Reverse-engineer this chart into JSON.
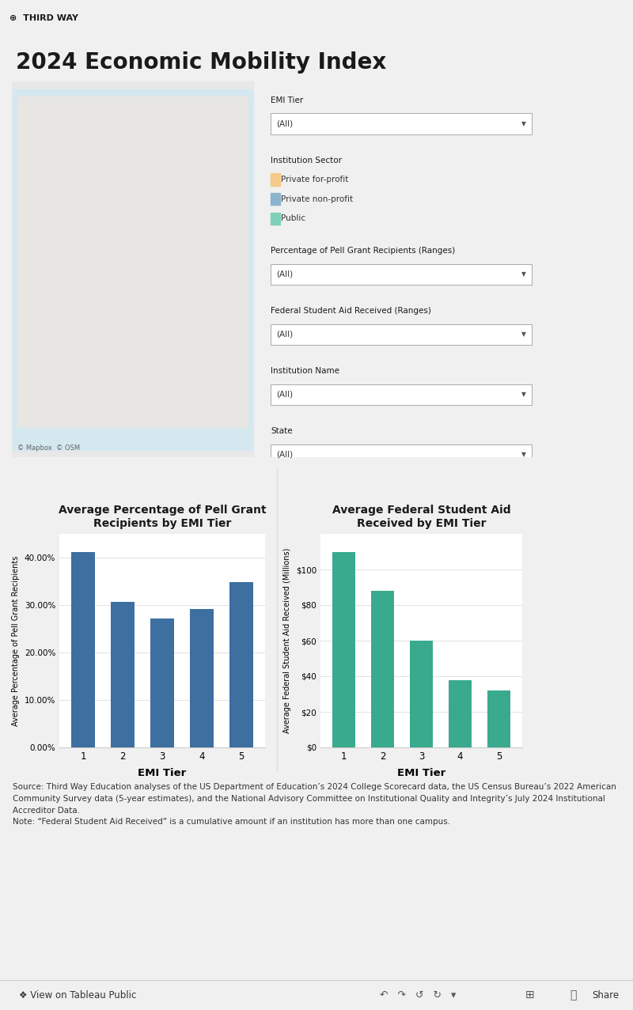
{
  "title": "2024 Economic Mobility Index",
  "logo_text": "THIRD WAY",
  "bg_color": "#f0f0f0",
  "panel_bg": "#ffffff",
  "orange_bar_color": "#f5a623",
  "header_bg": "#ffffff",
  "legend_items": [
    "Private for-profit",
    "Private non-profit",
    "Public"
  ],
  "legend_colors": [
    "#f5c98a",
    "#8ab4cc",
    "#7ecfb8"
  ],
  "chart1_title": "Average Percentage of Pell Grant\nRecipients by EMI Tier",
  "chart1_xlabel": "EMI Tier",
  "chart1_ylabel": "Average Percentage of Pell Grant Recipients",
  "chart1_values": [
    0.4115,
    0.306,
    0.272,
    0.291,
    0.349
  ],
  "chart1_categories": [
    1,
    2,
    3,
    4,
    5
  ],
  "chart1_color": "#3d6fa0",
  "chart1_yticks": [
    0.0,
    0.1,
    0.2,
    0.3,
    0.4
  ],
  "chart1_ytick_labels": [
    "0.00%",
    "10.00%",
    "20.00%",
    "30.00%",
    "40.00%"
  ],
  "chart1_ylim": [
    0,
    0.45
  ],
  "chart2_title": "Average Federal Student Aid\nReceived by EMI Tier",
  "chart2_xlabel": "EMI Tier",
  "chart2_ylabel": "Average Federal Student Aid Received (Millions)",
  "chart2_values": [
    110,
    88,
    60,
    38,
    32
  ],
  "chart2_categories": [
    1,
    2,
    3,
    4,
    5
  ],
  "chart2_color": "#3aaa8f",
  "chart2_yticks": [
    0,
    20,
    40,
    60,
    80,
    100
  ],
  "chart2_ytick_labels": [
    "$0",
    "$20",
    "$40",
    "$60",
    "$80",
    "$100"
  ],
  "chart2_ylim": [
    0,
    120
  ],
  "source_bold": "Source: ",
  "source_text": "Third Way Education analyses of the US Department of Education’s 2024 College Scorecard data, the US Census Bureau’s 2022 American Community Survey data (5-year estimates), and the National Advisory Committee on Institutional Quality and Integrity’s July 2024 Institutional Accreditor Data.",
  "note_bold": "Note: ",
  "note_text": "“Federal Student Aid Received” is a cumulative amount if an institution has more than one campus.",
  "footer_text": "❖ View on Tableau Public",
  "map_credit": "© Mapbox  © OSM"
}
